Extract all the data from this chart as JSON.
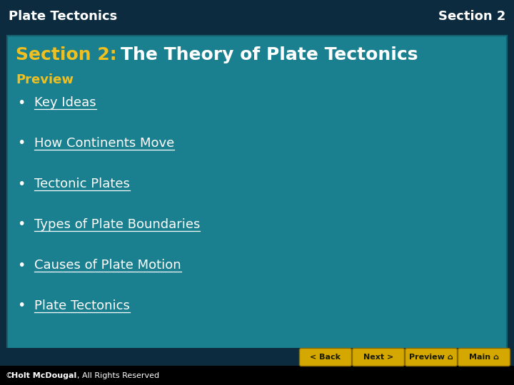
{
  "header_bg_color": "#0d2b3e",
  "header_text_color": "#ffffff",
  "header_left": "Plate Tectonics",
  "header_right": "Section 2",
  "header_font_size": 13,
  "content_bg_color": "#1a7f8e",
  "content_border_color": "#156070",
  "title_section2_color": "#f0c020",
  "title_section2_text": "Section 2:",
  "title_rest_color": "#ffffff",
  "title_rest_text": "The Theory of Plate Tectonics",
  "title_font_size": 18,
  "preview_label": "Preview",
  "preview_color": "#f0c020",
  "preview_font_size": 13,
  "bullet_items": [
    "Key Ideas",
    "How Continents Move",
    "Tectonic Plates",
    "Types of Plate Boundaries",
    "Causes of Plate Motion",
    "Plate Tectonics"
  ],
  "bullet_color": "#ffffff",
  "bullet_font_size": 13,
  "footer_bg_color": "#000000",
  "footer_font_size": 8,
  "footer_text_color": "#ffffff",
  "button_color": "#d4a800",
  "button_text_color": "#1a1a00",
  "buttons": [
    "< Back",
    "Next >",
    "Preview ⌂",
    "Main ⌂"
  ],
  "button_font_size": 8,
  "nav_bg_color": "#0d2b3e",
  "fig_width": 7.2,
  "fig_height": 5.4,
  "dpi": 100
}
